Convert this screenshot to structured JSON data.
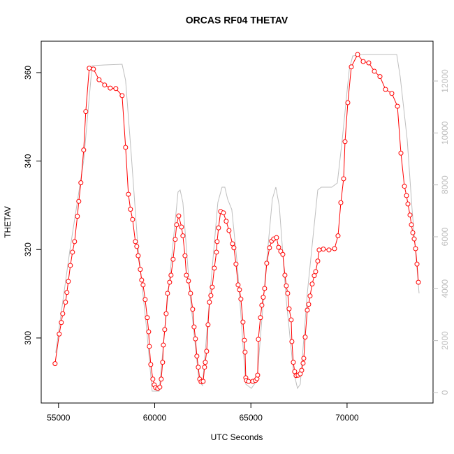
{
  "chart_data": {
    "type": "line",
    "title": "ORCAS RF04 THETAV",
    "x_label": "UTC Seconds",
    "y_label": "THETAV",
    "xlim": [
      54100,
      74470
    ],
    "ylim": [
      285.3,
      367.1
    ],
    "y2lim": [
      -404,
      13534
    ],
    "xticks": [
      55000,
      60000,
      65000,
      70000
    ],
    "yticks": [
      300,
      320,
      340,
      360
    ],
    "y2ticks": [
      0,
      2000,
      4000,
      6000,
      8000,
      10000,
      12000
    ],
    "series": [
      {
        "color": "#bebebe",
        "axis": "y2",
        "markers": false,
        "x": [
          54855,
          55581,
          56308,
          56744,
          57397,
          58305,
          58487,
          58778,
          59105,
          59577,
          59867,
          60231,
          60667,
          61212,
          61321,
          61466,
          61829,
          62301,
          62483,
          62846,
          63282,
          63500,
          63645,
          63790,
          64008,
          64299,
          64735,
          65025,
          65316,
          65752,
          66115,
          66297,
          66478,
          66841,
          67205,
          67423,
          67568,
          67932,
          68477,
          68659,
          69203,
          69494,
          69749,
          70112,
          70294,
          70839,
          72582,
          72764,
          73127,
          73381,
          73744
        ],
        "values": [
          1534,
          5435,
          8932,
          12591,
          12618,
          12645,
          12026,
          9201,
          5838,
          2475,
          54,
          54,
          3551,
          7721,
          7802,
          7318,
          3820,
          457,
          269,
          3551,
          7318,
          7910,
          7910,
          7452,
          7049,
          4896,
          323,
          161,
          457,
          4493,
          7452,
          7910,
          7183,
          3551,
          861,
          161,
          323,
          3820,
          7802,
          7910,
          7910,
          8071,
          9739,
          12429,
          12967,
          13021,
          13021,
          12160,
          9739,
          7049,
          3820
        ]
      },
      {
        "color": "#ff0000",
        "axis": "y",
        "markers": true,
        "x": [
          54820,
          55036,
          55145,
          55218,
          55363,
          55436,
          55509,
          55617,
          55726,
          55835,
          55980,
          56053,
          56162,
          56308,
          56417,
          56598,
          56816,
          57107,
          57397,
          57688,
          57979,
          58305,
          58487,
          58632,
          58741,
          58850,
          58995,
          59068,
          59141,
          59250,
          59322,
          59395,
          59504,
          59613,
          59686,
          59722,
          59795,
          59904,
          59976,
          60049,
          60158,
          60267,
          60340,
          60412,
          60449,
          60521,
          60594,
          60667,
          60776,
          60848,
          60957,
          61066,
          61139,
          61248,
          61393,
          61466,
          61575,
          61647,
          61756,
          61865,
          61974,
          62047,
          62119,
          62192,
          62265,
          62338,
          62410,
          62519,
          62592,
          62628,
          62701,
          62773,
          62846,
          62919,
          62991,
          63100,
          63209,
          63245,
          63318,
          63427,
          63572,
          63717,
          63863,
          64044,
          64117,
          64226,
          64335,
          64408,
          64480,
          64589,
          64662,
          64698,
          64735,
          64771,
          64880,
          65098,
          65243,
          65316,
          65352,
          65388,
          65497,
          65570,
          65642,
          65715,
          65824,
          65969,
          66078,
          66187,
          66333,
          66442,
          66551,
          66660,
          66769,
          66841,
          66914,
          66987,
          67096,
          67132,
          67205,
          67277,
          67350,
          67459,
          67568,
          67641,
          67714,
          67750,
          67823,
          67932,
          68004,
          68077,
          68186,
          68295,
          68368,
          68477,
          68549,
          68767,
          69058,
          69349,
          69530,
          69676,
          69821,
          69894,
          70039,
          70221,
          70548,
          70838,
          71129,
          71419,
          71710,
          72000,
          72327,
          72618,
          72800,
          72981,
          73090,
          73163,
          73272,
          73344,
          73417,
          73490,
          73563,
          73635,
          73708
        ],
        "values": [
          294.2,
          300.9,
          303.5,
          305.5,
          308.1,
          310.3,
          312.8,
          316.4,
          319.4,
          321.8,
          327.5,
          330.9,
          335.1,
          342.5,
          351.2,
          361.0,
          360.8,
          358.4,
          357.2,
          356.5,
          356.4,
          354.8,
          343.1,
          332.5,
          329.1,
          326.8,
          321.8,
          320.7,
          318.6,
          315.5,
          313.1,
          312.0,
          308.7,
          304.6,
          301.4,
          298.1,
          294.0,
          290.7,
          289.4,
          288.8,
          288.6,
          288.9,
          290.7,
          294.5,
          298.4,
          301.9,
          305.5,
          310.1,
          312.6,
          314.2,
          317.8,
          322.3,
          325.6,
          327.6,
          325.1,
          323.1,
          318.6,
          314.2,
          312.9,
          310.1,
          306.5,
          302.5,
          299.8,
          295.9,
          293.4,
          290.7,
          290.1,
          290.2,
          293.4,
          294.5,
          297.0,
          303.0,
          308.1,
          309.6,
          311.5,
          315.8,
          319.4,
          321.8,
          324.9,
          328.6,
          328.3,
          326.4,
          324.3,
          321.3,
          320.4,
          316.7,
          312.0,
          310.9,
          308.8,
          303.6,
          299.5,
          296.8,
          291.0,
          290.4,
          290.2,
          290.2,
          290.4,
          290.8,
          291.6,
          299.7,
          304.6,
          307.4,
          309.2,
          311.2,
          316.9,
          320.4,
          321.9,
          322.4,
          322.7,
          320.5,
          319.6,
          318.9,
          314.2,
          311.8,
          310.1,
          306.6,
          304.1,
          299.2,
          294.5,
          292.4,
          291.5,
          291.6,
          291.9,
          292.7,
          294.3,
          295.4,
          300.2,
          306.3,
          307.6,
          309.5,
          312.2,
          314.1,
          315.0,
          317.4,
          319.9,
          320.1,
          319.9,
          320.2,
          323.1,
          330.6,
          336.0,
          344.4,
          353.2,
          361.3,
          364.1,
          362.5,
          362.2,
          360.3,
          359.1,
          356.2,
          355.3,
          352.4,
          341.8,
          334.3,
          332.2,
          330.3,
          327.8,
          325.6,
          323.8,
          322.4,
          320.2,
          316.7,
          312.6
        ]
      }
    ]
  }
}
